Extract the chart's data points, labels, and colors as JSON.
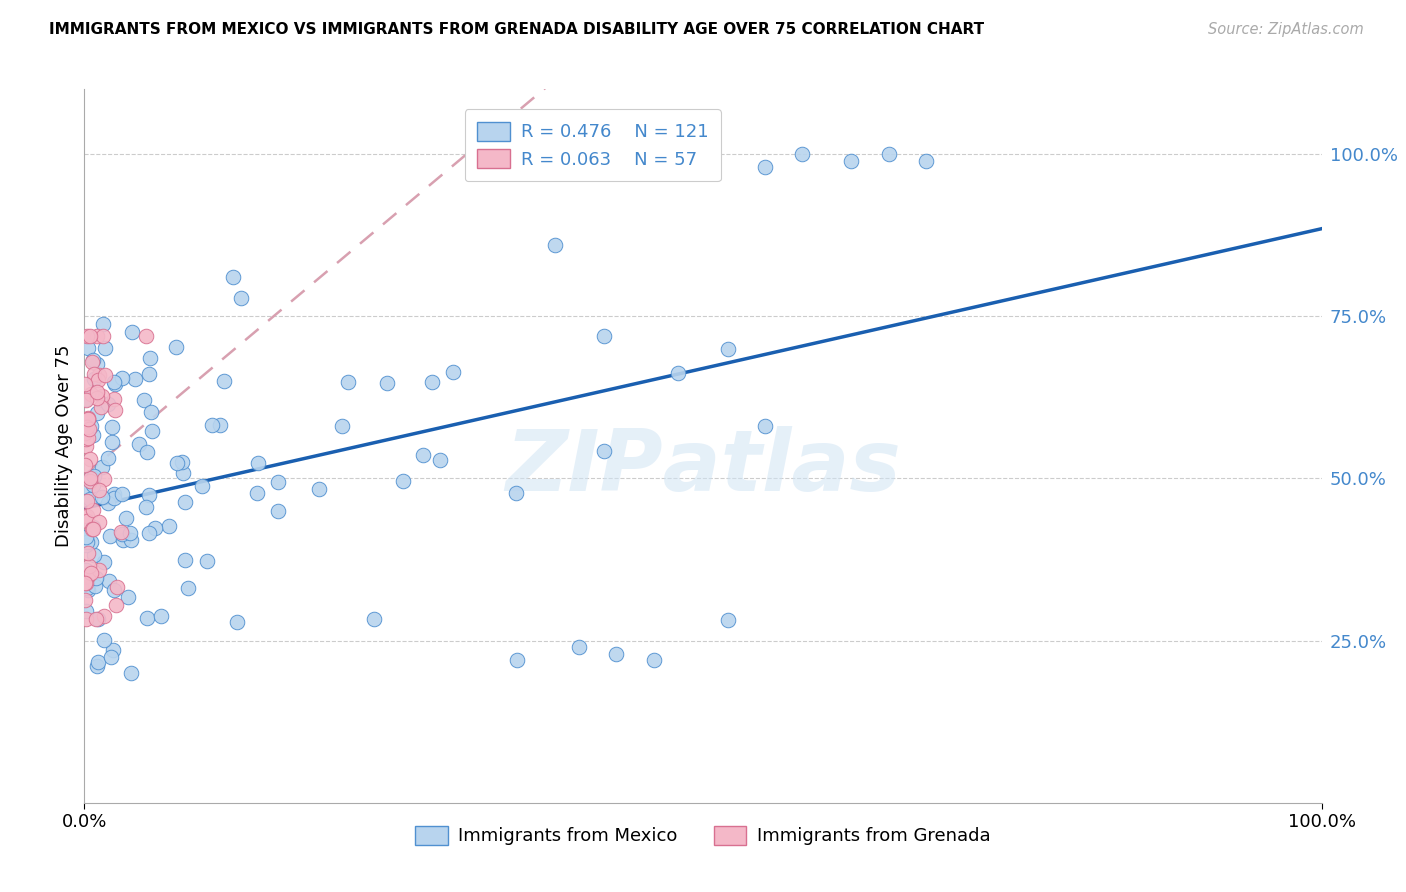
{
  "title": "IMMIGRANTS FROM MEXICO VS IMMIGRANTS FROM GRENADA DISABILITY AGE OVER 75 CORRELATION CHART",
  "source": "Source: ZipAtlas.com",
  "ylabel": "Disability Age Over 75",
  "legend_label1": "Immigrants from Mexico",
  "legend_label2": "Immigrants from Grenada",
  "r_mexico": 0.476,
  "n_mexico": 121,
  "r_grenada": 0.063,
  "n_grenada": 57,
  "color_mexico": "#b8d4ee",
  "color_grenada": "#f4b8c8",
  "edge_mexico": "#5090d0",
  "edge_grenada": "#d87090",
  "trendline_mexico_color": "#1a5fb0",
  "trendline_grenada_color": "#d8a0b0",
  "right_axis_color": "#4488cc",
  "xlim": [
    0.0,
    1.0
  ],
  "ylim": [
    0.0,
    1.1
  ],
  "yticks": [
    0.25,
    0.5,
    0.75,
    1.0
  ],
  "ytick_labels": [
    "25.0%",
    "50.0%",
    "75.0%",
    "100.0%"
  ],
  "xticks": [
    0.0,
    1.0
  ],
  "xtick_labels": [
    "0.0%",
    "100.0%"
  ],
  "seed": 99
}
